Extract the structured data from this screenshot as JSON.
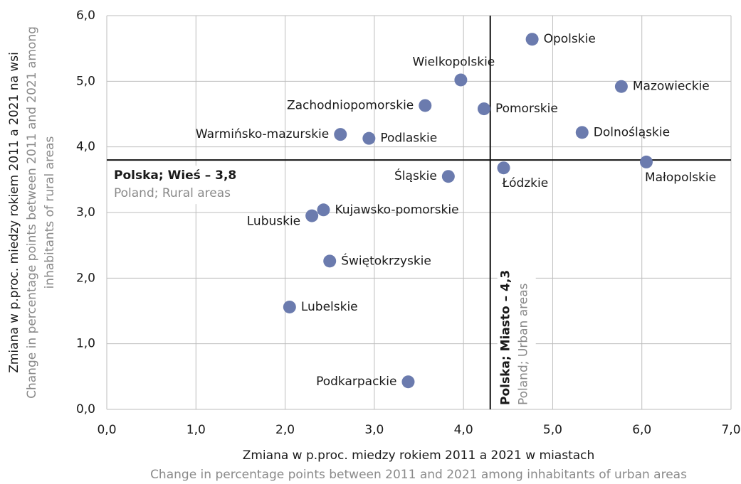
{
  "chart_data": {
    "type": "scatter",
    "x_label": "Zmiana w p.proc. miedzy rokiem 2011 a 2021 w miastach",
    "x_label_en": "Change in percentage points between 2011 and 2021 among inhabitants of urban areas",
    "y_label": "Zmiana w p.proc. miedzy rokiem 2011 a 2021 na wsi",
    "y_label_en": [
      "Change in percentage points between 2011 and 2021 among",
      "inhabitants of rural areas"
    ],
    "color": "#6b7bae",
    "labels": [
      "Opolskie",
      "Wielkopolskie",
      "Mazowieckie",
      "Zachodniopomorskie",
      "Pomorskie",
      "Dolnośląskie",
      "Warmińsko-mazurskie",
      "Podlaskie",
      "Małopolskie",
      "Śląskie",
      "Łódzkie",
      "Kujawsko-pomorskie",
      "Lubuskie",
      "Świętokrzyskie",
      "Lubelskie",
      "Podkarpackie"
    ],
    "x": [
      4.77,
      3.97,
      5.77,
      3.57,
      4.23,
      5.33,
      2.62,
      2.94,
      6.05,
      3.83,
      4.45,
      2.43,
      2.3,
      2.5,
      2.05,
      3.38
    ],
    "values": [
      5.64,
      5.02,
      4.92,
      4.63,
      4.58,
      4.22,
      4.19,
      4.13,
      3.77,
      3.55,
      3.68,
      3.04,
      2.95,
      2.26,
      1.56,
      0.42
    ],
    "reference_lines": [
      {
        "axis": "x",
        "value": 4.3,
        "label": "Polska; Miasto – 4,3",
        "label_en": "Poland; Urban areas"
      },
      {
        "axis": "y",
        "value": 3.8,
        "label": "Polska; Wieś – 3,8",
        "label_en": "Poland; Rural areas"
      }
    ],
    "xlim": [
      0,
      7
    ],
    "ylim": [
      0,
      6
    ],
    "xticks": [
      {
        "value": 0,
        "label": "0,0"
      },
      {
        "value": 1,
        "label": "1,0"
      },
      {
        "value": 2,
        "label": "2,0"
      },
      {
        "value": 3,
        "label": "3,0"
      },
      {
        "value": 4,
        "label": "4,0"
      },
      {
        "value": 5,
        "label": "5,0"
      },
      {
        "value": 6,
        "label": "6,0"
      },
      {
        "value": 7,
        "label": "7,0"
      }
    ],
    "yticks": [
      {
        "value": 0,
        "label": "0,0"
      },
      {
        "value": 1,
        "label": "1,0"
      },
      {
        "value": 2,
        "label": "2,0"
      },
      {
        "value": 3,
        "label": "3,0"
      },
      {
        "value": 4,
        "label": "4,0"
      },
      {
        "value": 5,
        "label": "5,0"
      },
      {
        "value": 6,
        "label": "6,0"
      }
    ],
    "grid": true
  }
}
